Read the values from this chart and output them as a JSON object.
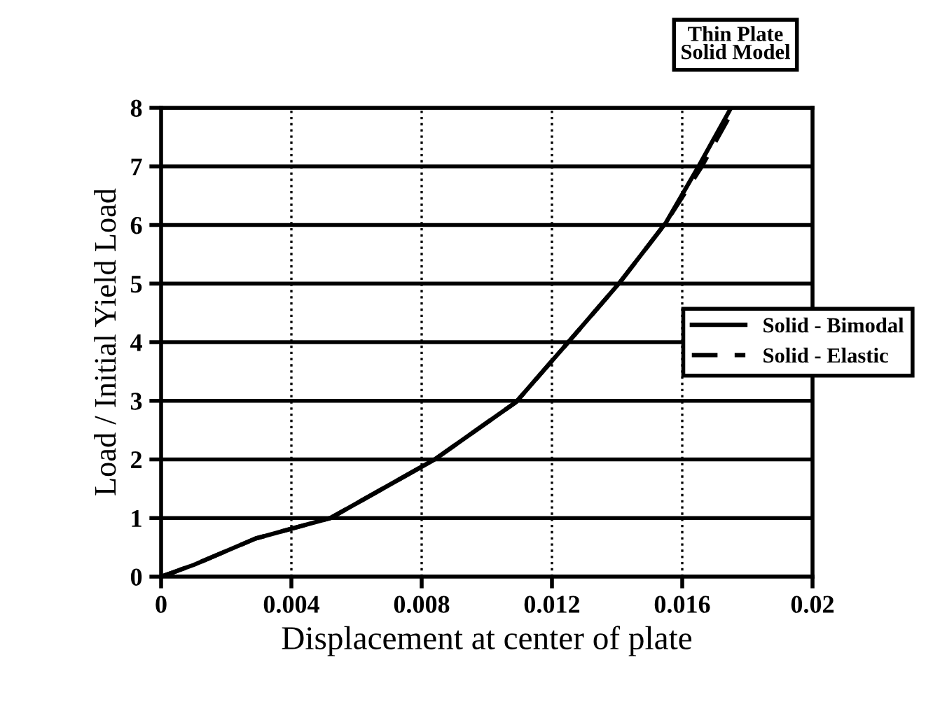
{
  "chart_data": {
    "type": "line",
    "xlabel": "Displacement at center of plate",
    "ylabel": "Load / Initial Yield Load",
    "annotations": [
      "Thin Plate\nSolid Model"
    ],
    "series": [
      {
        "name": "Solid - Bimodal",
        "color": "#000000",
        "line_style": "solid",
        "x": [
          0,
          0.001,
          0.0029,
          0.0052,
          0.0084,
          0.0109,
          0.0125,
          0.0141,
          0.0155,
          0.0165,
          0.0175
        ],
        "values": [
          0,
          0.2,
          0.65,
          1.0,
          2.0,
          2.98,
          4.0,
          5.03,
          6.04,
          7.0,
          8.0
        ]
      },
      {
        "name": "Solid - Elastic",
        "color": "#000000",
        "line_style": "dashed",
        "x": [
          0,
          0.001,
          0.0029,
          0.0052,
          0.0084,
          0.0109,
          0.0125,
          0.0141,
          0.0155,
          0.0166,
          0.0176
        ],
        "values": [
          0,
          0.2,
          0.65,
          1.0,
          2.0,
          2.98,
          4.0,
          5.03,
          6.04,
          7.0,
          8.0
        ]
      }
    ],
    "xlim": [
      0,
      0.02
    ],
    "xticks": [
      0,
      0.004,
      {
        "value": 0.008,
        "label": "0.008"
      },
      0.012,
      0.016,
      0.02
    ],
    "ylim": [
      0,
      8
    ],
    "yticks": [
      0,
      1,
      2,
      3,
      4,
      5,
      6,
      7,
      8
    ],
    "grid": true,
    "legend": "right",
    "marker": "none"
  }
}
